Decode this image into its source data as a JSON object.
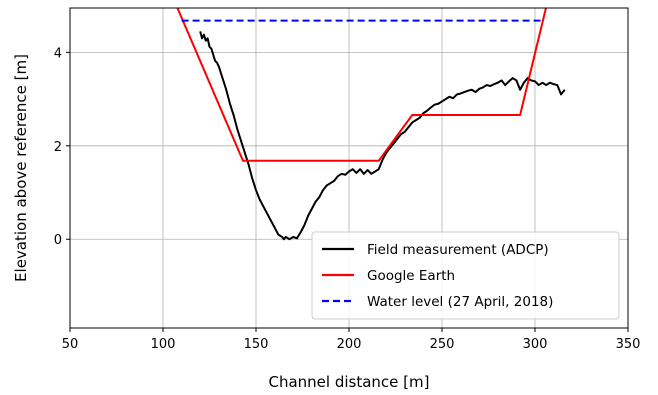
{
  "chart_data": {
    "type": "line",
    "xlabel": "Channel distance [m]",
    "ylabel": "Elevation above reference [m]",
    "xlim": [
      50,
      350
    ],
    "ylim": [
      -1.9,
      4.95
    ],
    "xticks": [
      50,
      100,
      150,
      200,
      250,
      300,
      350
    ],
    "yticks": [
      0,
      2,
      4
    ],
    "grid": true,
    "legend_position": "lower-right",
    "series": [
      {
        "name": "Field measurement (ADCP)",
        "color": "#000000",
        "style": "solid",
        "x": [
          120,
          121,
          122,
          123,
          124,
          125,
          126,
          127,
          128,
          129,
          130,
          132,
          134,
          136,
          138,
          140,
          142,
          144,
          146,
          148,
          150,
          152,
          154,
          156,
          158,
          160,
          162,
          164,
          165,
          166,
          168,
          170,
          172,
          174,
          176,
          178,
          180,
          182,
          184,
          186,
          188,
          190,
          192,
          194,
          196,
          198,
          200,
          202,
          204,
          206,
          208,
          210,
          212,
          214,
          216,
          218,
          220,
          222,
          224,
          226,
          228,
          230,
          232,
          234,
          236,
          238,
          240,
          242,
          244,
          246,
          248,
          250,
          252,
          254,
          256,
          258,
          260,
          262,
          264,
          266,
          268,
          270,
          272,
          274,
          276,
          278,
          280,
          282,
          284,
          286,
          288,
          290,
          292,
          294,
          296,
          298,
          300,
          302,
          304,
          306,
          308,
          310,
          312,
          314,
          316
        ],
        "y": [
          4.45,
          4.3,
          4.38,
          4.25,
          4.3,
          4.12,
          4.08,
          3.95,
          3.82,
          3.78,
          3.7,
          3.45,
          3.2,
          2.9,
          2.65,
          2.35,
          2.1,
          1.85,
          1.6,
          1.3,
          1.05,
          0.85,
          0.7,
          0.55,
          0.4,
          0.25,
          0.1,
          0.05,
          0.0,
          0.05,
          0.0,
          0.05,
          0.02,
          0.15,
          0.3,
          0.5,
          0.65,
          0.8,
          0.9,
          1.05,
          1.15,
          1.2,
          1.25,
          1.35,
          1.4,
          1.38,
          1.45,
          1.5,
          1.42,
          1.5,
          1.4,
          1.48,
          1.4,
          1.45,
          1.5,
          1.7,
          1.85,
          1.95,
          2.05,
          2.15,
          2.25,
          2.3,
          2.4,
          2.5,
          2.55,
          2.6,
          2.7,
          2.75,
          2.82,
          2.88,
          2.9,
          2.95,
          3.0,
          3.05,
          3.02,
          3.1,
          3.12,
          3.15,
          3.18,
          3.2,
          3.15,
          3.22,
          3.25,
          3.3,
          3.28,
          3.32,
          3.35,
          3.4,
          3.3,
          3.38,
          3.45,
          3.4,
          3.2,
          3.35,
          3.45,
          3.4,
          3.38,
          3.3,
          3.35,
          3.3,
          3.35,
          3.32,
          3.3,
          3.1,
          3.2
        ]
      },
      {
        "name": "Google Earth",
        "color": "#ff0000",
        "style": "solid",
        "x": [
          104,
          143,
          216,
          234,
          292,
          308
        ],
        "y": [
          5.3,
          1.68,
          1.68,
          2.66,
          2.66,
          5.3
        ]
      },
      {
        "name": "Water level (27 April, 2018)",
        "color": "#0000ff",
        "style": "dashed",
        "x": [
          110,
          303
        ],
        "y": [
          4.68,
          4.68
        ]
      }
    ]
  }
}
